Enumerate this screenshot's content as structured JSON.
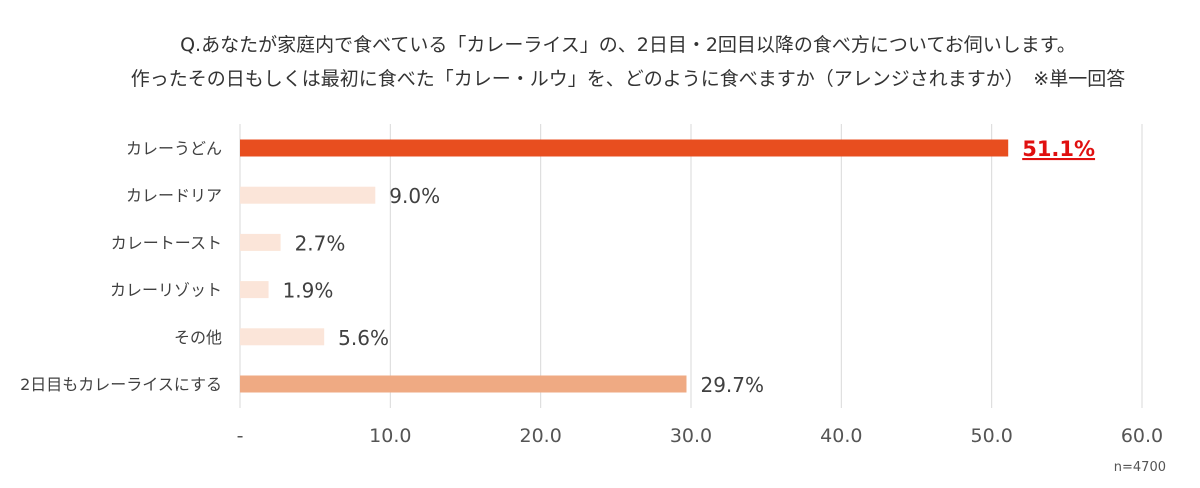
{
  "question": {
    "line1": "Q.あなたが家庭内で食べている「カレーライス」の、2日目・2回目以降の食べ方についてお伺いします。",
    "line2": "作ったその日もしくは最初に食べた「カレー・ルウ」を、どのように食べますか（アレンジされますか）　※単一回答"
  },
  "sample_note": "n=4700",
  "chart_data": {
    "type": "bar",
    "orientation": "horizontal",
    "categories": [
      "カレーうどん",
      "カレードリア",
      "カレートースト",
      "カレーリゾット",
      "その他",
      "2日目もカレーライスにする"
    ],
    "values": [
      51.1,
      9.0,
      2.7,
      1.9,
      5.6,
      29.7
    ],
    "value_labels": [
      "51.1%",
      "9.0%",
      "2.7%",
      "1.9%",
      "5.6%",
      "29.7%"
    ],
    "highlight_index": 0,
    "bar_colors": [
      "#E84E1F",
      "#FBE5D9",
      "#FBE5D9",
      "#FBE5D9",
      "#FBE5D9",
      "#EFAA83"
    ],
    "highlight_label_color": "#E01010",
    "xlim": [
      0,
      60
    ],
    "xticks": [
      0,
      10,
      20,
      30,
      40,
      50,
      60
    ],
    "xtick_labels": [
      "-",
      "10.0",
      "20.0",
      "30.0",
      "40.0",
      "50.0",
      "60.0"
    ],
    "grid": true,
    "xlabel": "",
    "ylabel": ""
  }
}
